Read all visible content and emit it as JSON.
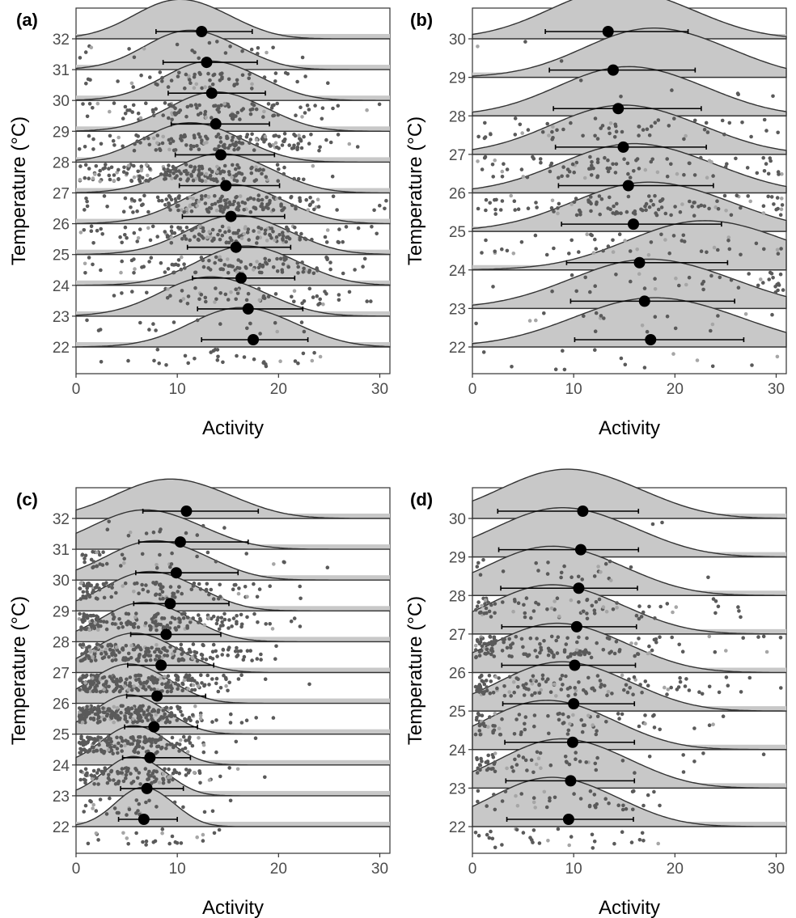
{
  "chart_data": [
    {
      "panel": "(a)",
      "type": "ridgeline",
      "xlabel": "Activity",
      "ylabel": "Temperature (°C)",
      "xlim": [
        0,
        31
      ],
      "xticks": [
        0,
        10,
        20,
        30
      ],
      "categories": [
        22,
        23,
        24,
        25,
        26,
        27,
        28,
        29,
        30,
        31,
        32
      ],
      "mean": [
        17.5,
        17.0,
        16.3,
        15.8,
        15.3,
        14.8,
        14.3,
        13.8,
        13.4,
        12.9,
        12.4
      ],
      "err_low": [
        12.4,
        12.0,
        11.5,
        11.0,
        10.5,
        10.2,
        9.8,
        9.4,
        9.1,
        8.6,
        7.9
      ],
      "err_high": [
        22.9,
        22.4,
        21.6,
        21.2,
        20.6,
        20.1,
        19.6,
        19.1,
        18.7,
        17.9,
        17.4
      ],
      "density_peak": [
        16.0,
        13.0,
        16.5,
        15.5,
        15.0,
        14.0,
        11.0,
        13.5,
        13.0,
        11.0,
        10.0
      ],
      "n_points": [
        30,
        18,
        60,
        110,
        150,
        170,
        190,
        150,
        110,
        60,
        22
      ]
    },
    {
      "panel": "(b)",
      "type": "ridgeline",
      "xlabel": "Activity",
      "ylabel": "Temperature (°C)",
      "xlim": [
        0,
        31
      ],
      "xticks": [
        0,
        10,
        20,
        30
      ],
      "categories": [
        22,
        23,
        24,
        25,
        26,
        27,
        28,
        29,
        30
      ],
      "mean": [
        17.6,
        17.0,
        16.5,
        15.9,
        15.4,
        14.9,
        14.4,
        13.9,
        13.4
      ],
      "err_low": [
        10.1,
        9.7,
        9.3,
        8.8,
        8.5,
        8.2,
        8.0,
        7.6,
        7.2
      ],
      "err_high": [
        26.8,
        25.9,
        25.2,
        24.6,
        23.8,
        23.1,
        22.6,
        22.0,
        21.3
      ],
      "density_peak": [
        17.5,
        17.0,
        22.5,
        17.0,
        15.5,
        14.5,
        15.0,
        17.5,
        14.0
      ],
      "n_points": [
        14,
        20,
        40,
        50,
        110,
        90,
        60,
        6,
        3
      ]
    },
    {
      "panel": "(c)",
      "type": "ridgeline",
      "xlabel": "Activity",
      "ylabel": "Temperature (°C)",
      "xlim": [
        0,
        31
      ],
      "xticks": [
        0,
        10,
        20,
        30
      ],
      "categories": [
        22,
        23,
        24,
        25,
        26,
        27,
        28,
        29,
        30,
        31,
        32
      ],
      "mean": [
        6.7,
        7.0,
        7.3,
        7.7,
        8.0,
        8.4,
        8.9,
        9.3,
        9.9,
        10.3,
        10.9
      ],
      "err_low": [
        4.2,
        4.4,
        4.6,
        4.8,
        5.0,
        5.1,
        5.4,
        5.7,
        5.9,
        6.2,
        6.6
      ],
      "err_high": [
        10.0,
        10.6,
        11.3,
        12.0,
        12.8,
        13.6,
        14.3,
        15.1,
        16.0,
        17.0,
        18.0
      ],
      "density_peak": [
        6.5,
        5.5,
        5.5,
        5.0,
        5.0,
        5.5,
        6.5,
        7.0,
        7.5,
        6.5,
        9.0
      ],
      "n_points": [
        25,
        30,
        110,
        170,
        230,
        230,
        200,
        170,
        110,
        40,
        12
      ]
    },
    {
      "panel": "(d)",
      "type": "ridgeline",
      "xlabel": "Activity",
      "ylabel": "Temperature (°C)",
      "xlim": [
        0,
        31
      ],
      "xticks": [
        0,
        10,
        20,
        30
      ],
      "categories": [
        22,
        23,
        24,
        25,
        26,
        27,
        28,
        29,
        30
      ],
      "mean": [
        9.5,
        9.7,
        9.9,
        10.0,
        10.1,
        10.3,
        10.5,
        10.7,
        10.9
      ],
      "err_low": [
        3.4,
        3.3,
        3.2,
        3.0,
        2.9,
        2.9,
        2.8,
        2.6,
        2.5
      ],
      "err_high": [
        15.9,
        16.0,
        16.0,
        16.0,
        16.1,
        16.2,
        16.3,
        16.4,
        16.4
      ],
      "density_peak": [
        7.5,
        8.5,
        7.0,
        8.5,
        8.0,
        7.5,
        7.5,
        8.5,
        9.0
      ],
      "n_points": [
        30,
        40,
        60,
        80,
        130,
        150,
        80,
        25,
        2
      ]
    }
  ]
}
